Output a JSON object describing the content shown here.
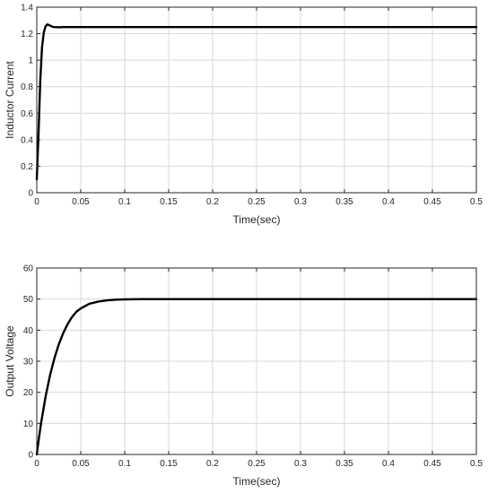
{
  "chart_data": [
    {
      "type": "line",
      "title": "",
      "xlabel": "Time(sec)",
      "ylabel": "Inductor Current",
      "xlim": [
        0,
        0.5
      ],
      "ylim": [
        0,
        1.4
      ],
      "xticks": [
        "0",
        "0.05",
        "0.1",
        "0.15",
        "0.2",
        "0.25",
        "0.3",
        "0.35",
        "0.4",
        "0.45",
        "0.5"
      ],
      "yticks": [
        "0",
        "0.2",
        "0.4",
        "0.6",
        "0.8",
        "1",
        "1.2",
        "1.4"
      ],
      "grid": true,
      "series": [
        {
          "color": "#000000",
          "x": [
            0,
            0.002,
            0.004,
            0.006,
            0.008,
            0.01,
            0.012,
            0.014,
            0.016,
            0.018,
            0.02,
            0.025,
            0.03,
            0.04,
            0.05,
            0.1,
            0.2,
            0.3,
            0.4,
            0.5
          ],
          "y": [
            0.1,
            0.45,
            0.85,
            1.1,
            1.21,
            1.255,
            1.27,
            1.265,
            1.258,
            1.252,
            1.25,
            1.248,
            1.25,
            1.25,
            1.25,
            1.25,
            1.25,
            1.25,
            1.25,
            1.25
          ]
        }
      ]
    },
    {
      "type": "line",
      "title": "",
      "xlabel": "Time(sec)",
      "ylabel": "Output Voltage",
      "xlim": [
        0,
        0.5
      ],
      "ylim": [
        0,
        60
      ],
      "xticks": [
        "0",
        "0.05",
        "0.1",
        "0.15",
        "0.2",
        "0.25",
        "0.3",
        "0.35",
        "0.4",
        "0.45",
        "0.5"
      ],
      "yticks": [
        "0",
        "10",
        "20",
        "30",
        "40",
        "50",
        "60"
      ],
      "grid": true,
      "series": [
        {
          "color": "#000000",
          "x": [
            0,
            0.002,
            0.005,
            0.01,
            0.015,
            0.02,
            0.025,
            0.03,
            0.035,
            0.04,
            0.045,
            0.05,
            0.06,
            0.07,
            0.08,
            0.09,
            0.1,
            0.12,
            0.15,
            0.2,
            0.3,
            0.4,
            0.5
          ],
          "y": [
            0,
            4.4,
            10.3,
            18.6,
            25.4,
            30.9,
            35.4,
            39.0,
            41.9,
            44.2,
            45.9,
            47.0,
            48.5,
            49.2,
            49.6,
            49.8,
            49.9,
            50,
            50,
            50,
            50,
            50,
            50
          ]
        }
      ]
    }
  ]
}
